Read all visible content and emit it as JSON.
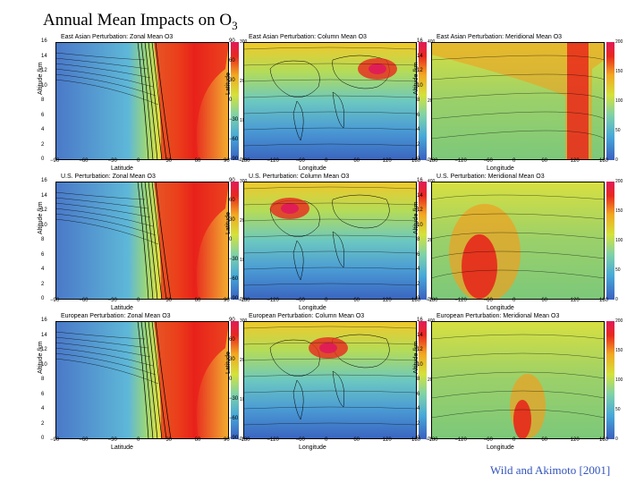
{
  "slide": {
    "title_main": "Annual Mean Impacts on O",
    "title_sub": "3",
    "credit": "Wild and Akimoto [2001]"
  },
  "panels": [
    {
      "title": "East Asian Perturbation:   Zonal Mean O3",
      "ylabel": "Altitude /km",
      "xlabel": "Latitude",
      "kind": "zonal",
      "yticks": [
        "16",
        "14",
        "12",
        "10",
        "8",
        "6",
        "4",
        "2",
        "0"
      ],
      "xticks": [
        "−90",
        "−60",
        "−30",
        "0",
        "30",
        "60",
        "90"
      ],
      "cticks": [
        "300",
        "200",
        "100",
        "0"
      ]
    },
    {
      "title": "East Asian Perturbation:   Column Mean O3",
      "ylabel": "Latitude",
      "xlabel": "Longitude",
      "kind": "column",
      "yticks": [
        "90",
        "60",
        "30",
        "0",
        "−30",
        "−60",
        "−90"
      ],
      "xticks": [
        "−180",
        "−120",
        "−60",
        "0",
        "60",
        "120",
        "180"
      ],
      "cticks": [
        "400",
        "200",
        "0"
      ]
    },
    {
      "title": "East Asian Perturbation:   Meridional Mean O3",
      "ylabel": "Altitude /km",
      "xlabel": "Longitude",
      "kind": "merid",
      "yticks": [
        "16",
        "14",
        "12",
        "10",
        "8",
        "6",
        "4",
        "2",
        "0"
      ],
      "xticks": [
        "−180",
        "−120",
        "−60",
        "0",
        "60",
        "120",
        "180"
      ],
      "cticks": [
        "200",
        "150",
        "100",
        "50",
        "0"
      ]
    },
    {
      "title": "U.S. Perturbation:   Zonal Mean O3",
      "ylabel": "Altitude /km",
      "xlabel": "Latitude",
      "kind": "zonal",
      "yticks": [
        "16",
        "14",
        "12",
        "10",
        "8",
        "6",
        "4",
        "2",
        "0"
      ],
      "xticks": [
        "−90",
        "−60",
        "−30",
        "0",
        "30",
        "60",
        "90"
      ],
      "cticks": [
        "300",
        "200",
        "100",
        "0"
      ]
    },
    {
      "title": "U.S. Perturbation:   Column Mean O3",
      "ylabel": "Latitude",
      "xlabel": "Longitude",
      "kind": "column",
      "yticks": [
        "90",
        "60",
        "30",
        "0",
        "−30",
        "−60",
        "−90"
      ],
      "xticks": [
        "−180",
        "−120",
        "−60",
        "0",
        "60",
        "120",
        "180"
      ],
      "cticks": [
        "400",
        "200",
        "0"
      ]
    },
    {
      "title": "U.S. Perturbation:   Meridional Mean O3",
      "ylabel": "Altitude /km",
      "xlabel": "Longitude",
      "kind": "merid",
      "yticks": [
        "16",
        "14",
        "12",
        "10",
        "8",
        "6",
        "4",
        "2",
        "0"
      ],
      "xticks": [
        "−180",
        "−120",
        "−60",
        "0",
        "60",
        "120",
        "180"
      ],
      "cticks": [
        "200",
        "150",
        "100",
        "50",
        "0"
      ]
    },
    {
      "title": "European Perturbation:   Zonal Mean O3",
      "ylabel": "Altitude /km",
      "xlabel": "Latitude",
      "kind": "zonal",
      "yticks": [
        "16",
        "14",
        "12",
        "10",
        "8",
        "6",
        "4",
        "2",
        "0"
      ],
      "xticks": [
        "−90",
        "−60",
        "−30",
        "0",
        "30",
        "60",
        "90"
      ],
      "cticks": [
        "300",
        "200",
        "100",
        "0"
      ]
    },
    {
      "title": "European Perturbation:   Column Mean O3",
      "ylabel": "Latitude",
      "xlabel": "Longitude",
      "kind": "column",
      "yticks": [
        "90",
        "60",
        "30",
        "0",
        "−30",
        "−60",
        "−90"
      ],
      "xticks": [
        "−180",
        "−120",
        "−60",
        "0",
        "60",
        "120",
        "180"
      ],
      "cticks": [
        "400",
        "200",
        "0"
      ]
    },
    {
      "title": "European Perturbation:   Meridional Mean O3",
      "ylabel": "Altitude /km",
      "xlabel": "Longitude",
      "kind": "merid",
      "yticks": [
        "16",
        "14",
        "12",
        "10",
        "8",
        "6",
        "4",
        "2",
        "0"
      ],
      "xticks": [
        "−180",
        "−120",
        "−60",
        "0",
        "60",
        "120",
        "180"
      ],
      "cticks": [
        "200",
        "150",
        "100",
        "50",
        "0"
      ]
    }
  ]
}
